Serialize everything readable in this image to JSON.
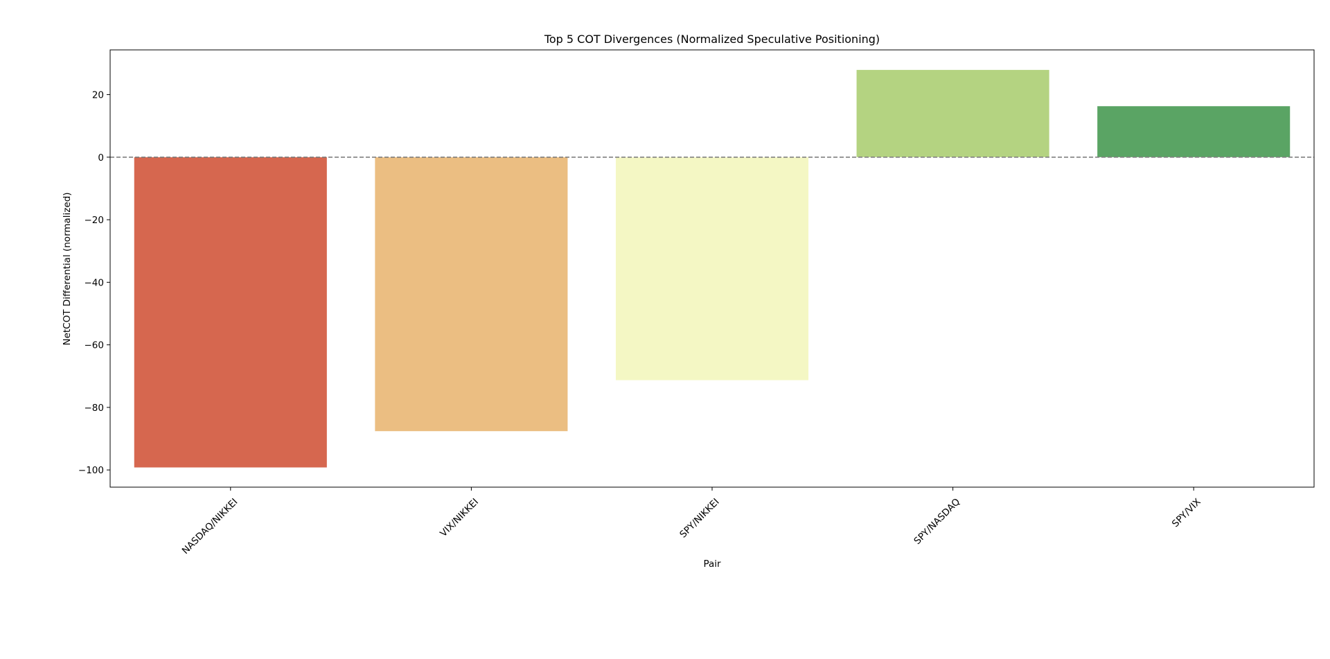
{
  "chart_data": {
    "type": "bar",
    "title": "Top 5 COT Divergences (Normalized Speculative Positioning)",
    "xlabel": "Pair",
    "ylabel": "NetCOT Differential (normalized)",
    "categories": [
      "NASDAQ/NIKKEI",
      "VIX/NIKKEI",
      "SPY/NIKKEI",
      "SPY/NASDAQ",
      "SPY/VIX"
    ],
    "values": [
      -99.2,
      -87.6,
      -71.3,
      27.9,
      16.3
    ],
    "colors": [
      "#d6674f",
      "#ebbe82",
      "#f4f7c4",
      "#b4d381",
      "#5aa464"
    ],
    "ylim": [
      -105.5,
      34.3
    ],
    "yticks": [
      20,
      0,
      -20,
      -40,
      -60,
      -80,
      -100
    ],
    "ytick_labels": [
      "20",
      "0",
      "−20",
      "−40",
      "−60",
      "−80",
      "−100"
    ],
    "reference_line": {
      "y": 0,
      "style": "dashed",
      "color": "#7f7f7f"
    },
    "grid": false,
    "legend": "none"
  }
}
